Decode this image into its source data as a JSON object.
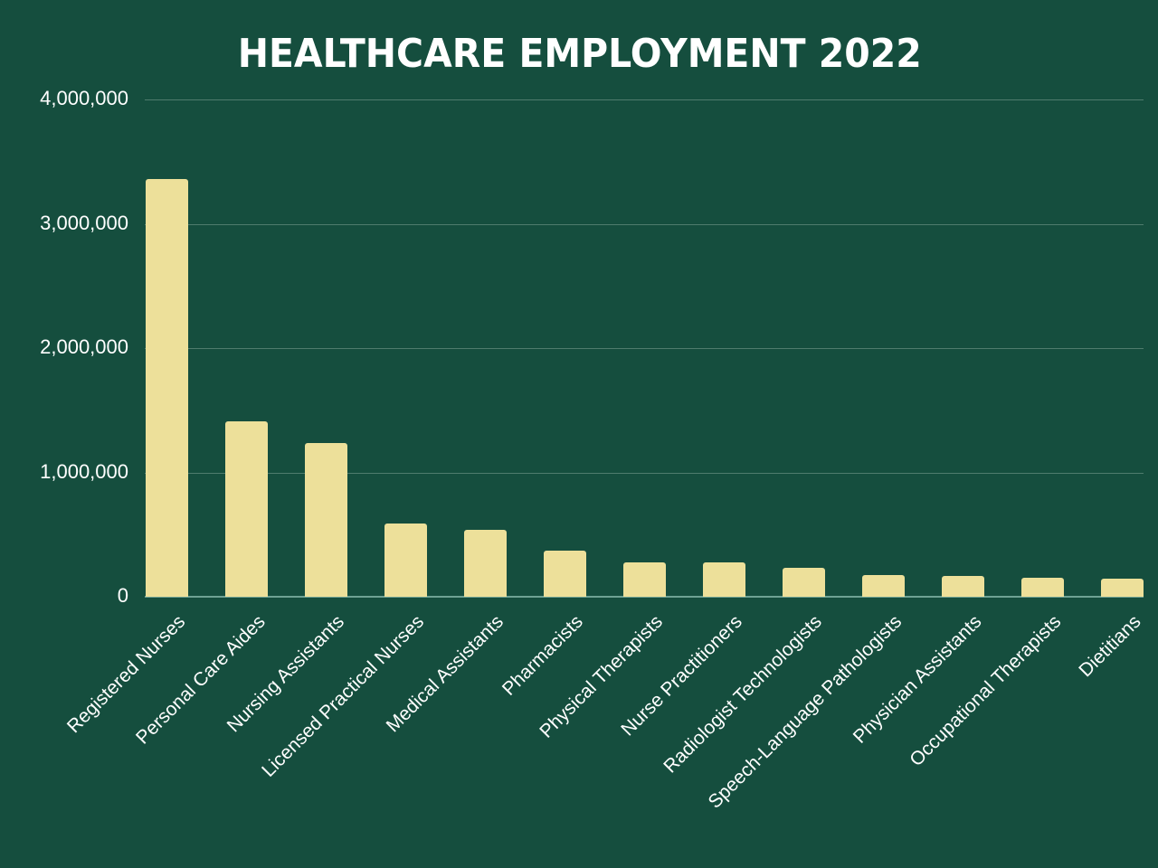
{
  "title": "HEALTHCARE EMPLOYMENT 2022",
  "colors": {
    "background": "#154e3e",
    "bar": "#ede09a",
    "gridline": "#4f7c6d",
    "text": "#ffffff"
  },
  "y_axis": {
    "ticks": [
      "4,000,000",
      "3,000,000",
      "2,000,000",
      "1,000,000",
      "0"
    ]
  },
  "chart_data": {
    "type": "bar",
    "title": "HEALTHCARE EMPLOYMENT 2022",
    "xlabel": "",
    "ylabel": "",
    "categories": [
      "Registered Nurses",
      "Personal Care Aides",
      "Nursing Assistants",
      "Licensed Practical Nurses",
      "Medical Assistants",
      "Pharmacists",
      "Physical Therapists",
      "Nurse Practitioners",
      "Radiologist Technologists",
      "Speech-Language Pathologists",
      "Physician Assistants",
      "Occupational Therapists",
      "Dietitians"
    ],
    "values": [
      3360000,
      1410000,
      1240000,
      590000,
      540000,
      370000,
      275000,
      275000,
      230000,
      175000,
      165000,
      155000,
      145000
    ],
    "ylim": [
      0,
      4000000
    ],
    "yticks": [
      0,
      1000000,
      2000000,
      3000000,
      4000000
    ],
    "grid": true,
    "legend": "none"
  }
}
